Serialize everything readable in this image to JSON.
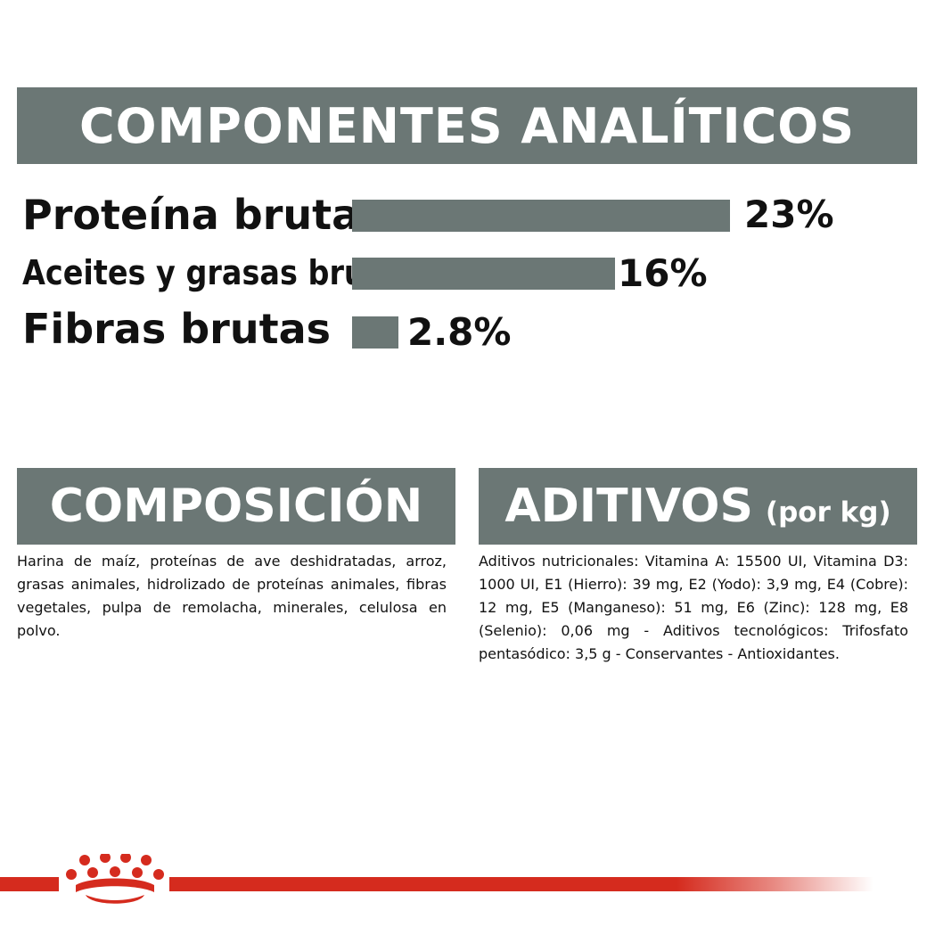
{
  "analytical": {
    "title": "COMPONENTES ANALÍTICOS",
    "items": [
      {
        "label": "Proteína bruta",
        "value_text": "23%",
        "value": 23
      },
      {
        "label": "Aceites y grasas brutos",
        "value_text": "16%",
        "value": 16
      },
      {
        "label": "Fibras brutas",
        "value_text": "2.8%",
        "value": 2.8
      }
    ]
  },
  "composition": {
    "title": "COMPOSICIÓN",
    "text": "Harina de maíz, proteínas de ave deshidratadas, arroz, grasas animales, hidrolizado de proteínas animales, fibras vegetales, pulpa de remolacha, minerales, celulosa en polvo."
  },
  "additives": {
    "title": "ADITIVOS",
    "unit": "(por kg)",
    "text": "Aditivos nutricionales: Vitamina A: 15500 UI, Vitamina D3: 1000 UI, E1 (Hierro): 39 mg, E2 (Yodo): 3,9 mg, E4 (Cobre): 12 mg, E5 (Manganeso): 51 mg, E6 (Zinc): 128 mg, E8 (Selenio): 0,06 mg - Aditivos tecnológicos: Trifosfato pentasódico: 3,5 g - Conservantes - Antioxidantes."
  },
  "brand": {
    "logo_icon": "crown-logo-icon",
    "color": "#d52b1e"
  },
  "colors": {
    "banner": "#6b7775",
    "bar": "#6b7775",
    "text": "#111111"
  }
}
